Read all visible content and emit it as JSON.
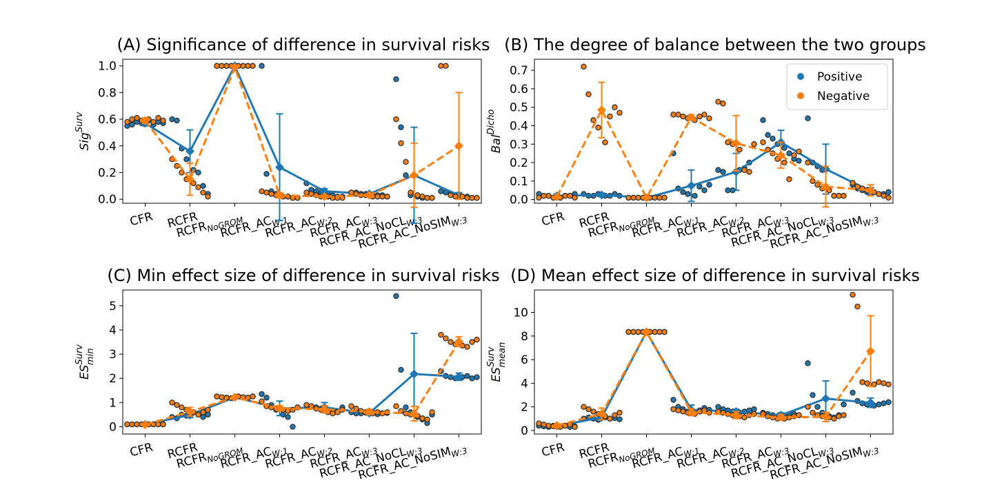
{
  "series_colors": {
    "Positive": "#1f77b4",
    "Negative": "#ff7f0e"
  },
  "legend": {
    "items": [
      "Positive",
      "Negative"
    ],
    "position": "top-right",
    "panel": 1
  },
  "chart_data": [
    {
      "type": "line",
      "title": "(A) Significance of difference in survival risks",
      "ylabel": {
        "main": "Sig",
        "sup": "Surv"
      },
      "categories": [
        {
          "main": "CFR",
          "sub": ""
        },
        {
          "main": "RCFR",
          "sub": ""
        },
        {
          "main": "RCFR",
          "sub": "NoGROM"
        },
        {
          "main": "RCFR_AC",
          "sub": "W:1"
        },
        {
          "main": "RCFR_AC",
          "sub": "W:2"
        },
        {
          "main": "RCFR_AC",
          "sub": "W:3"
        },
        {
          "main": "RCFR_AC_NoCL",
          "sub": "W:3"
        },
        {
          "main": "RCFR_AC_NoSIM",
          "sub": "W:3"
        }
      ],
      "ylim": [
        -0.03,
        1.05
      ],
      "yticks": [
        0,
        0.2,
        0.4,
        0.6,
        0.8,
        1.0
      ],
      "ytick_labels": [
        "0.0",
        "0.2",
        "0.4",
        "0.6",
        "0.8",
        "1.0"
      ],
      "grid": false,
      "series": [
        {
          "name": "Positive",
          "values": [
            0.57,
            0.36,
            1.0,
            0.24,
            0.06,
            0.04,
            0.18,
            0.03
          ],
          "err": [
            0.02,
            0.16,
            0.0,
            0.4,
            0.02,
            0.01,
            0.36,
            0.02
          ],
          "points": [
            [
              0.55,
              0.56,
              0.58,
              0.57,
              0.59,
              0.56,
              0.58,
              0.57
            ],
            [
              0.6,
              0.59,
              0.38,
              0.3,
              0.22,
              0.2,
              0.1,
              0.04
            ],
            [
              1,
              1,
              1,
              1,
              1,
              1,
              1,
              1
            ],
            [
              1.0,
              0.19,
              0.06,
              0.04,
              0.02,
              0.02,
              0.01,
              0.01
            ],
            [
              0.12,
              0.07,
              0.06,
              0.05,
              0.04,
              0.03,
              0.02,
              0.02
            ],
            [
              0.05,
              0.05,
              0.04,
              0.04,
              0.03,
              0.03,
              0.03,
              0.02
            ],
            [
              0.9,
              0.54,
              0.18,
              0.03,
              0.02,
              0.01,
              0.01,
              0.01
            ],
            [
              0.06,
              0.05,
              0.04,
              0.03,
              0.02,
              0.02,
              0.01,
              0.01
            ]
          ]
        },
        {
          "name": "Negative",
          "values": [
            0.59,
            0.15,
            0.99,
            0.03,
            0.02,
            0.03,
            0.18,
            0.4
          ],
          "err": [
            0.02,
            0.12,
            0.0,
            0.02,
            0.01,
            0.01,
            0.24,
            0.4
          ],
          "points": [
            [
              0.58,
              0.6,
              0.61,
              0.59,
              0.6,
              0.58,
              0.61,
              0.59
            ],
            [
              0.3,
              0.25,
              0.2,
              0.15,
              0.12,
              0.09,
              0.05,
              0.02
            ],
            [
              1,
              1,
              1,
              1,
              1,
              1,
              1,
              1
            ],
            [
              0.06,
              0.05,
              0.04,
              0.03,
              0.02,
              0.02,
              0.01,
              0.01
            ],
            [
              0.05,
              0.04,
              0.03,
              0.02,
              0.02,
              0.01,
              0.01,
              0.01
            ],
            [
              0.05,
              0.04,
              0.03,
              0.03,
              0.02,
              0.02,
              0.02,
              0.02
            ],
            [
              0.6,
              0.42,
              0.28,
              0.05,
              0.03,
              0.02,
              0.01,
              0.01
            ],
            [
              1.0,
              1.0,
              0.03,
              0.02,
              0.02,
              0.01,
              0.01,
              0.01
            ]
          ]
        }
      ]
    },
    {
      "type": "line",
      "title": "(B) The degree of balance between the two groups",
      "ylabel": {
        "main": "Bal",
        "sup": "Dicho"
      },
      "categories": [
        {
          "main": "CFR",
          "sub": ""
        },
        {
          "main": "RCFR",
          "sub": ""
        },
        {
          "main": "RCFR",
          "sub": "NoGROM"
        },
        {
          "main": "RCFR_AC",
          "sub": "W:1"
        },
        {
          "main": "RCFR_AC",
          "sub": "W:2"
        },
        {
          "main": "RCFR_AC",
          "sub": "W:3"
        },
        {
          "main": "RCFR_AC_NoCL",
          "sub": "W:3"
        },
        {
          "main": "RCFR_AC_NoSIM",
          "sub": "W:3"
        }
      ],
      "ylim": [
        -0.02,
        0.76
      ],
      "yticks": [
        0,
        0.1,
        0.2,
        0.3,
        0.4,
        0.5,
        0.6,
        0.7
      ],
      "ytick_labels": [
        "0.0",
        "0.1",
        "0.2",
        "0.3",
        "0.4",
        "0.5",
        "0.6",
        "0.7"
      ],
      "grid": false,
      "series": [
        {
          "name": "Positive",
          "values": [
            0.02,
            0.025,
            0.01,
            0.075,
            0.15,
            0.31,
            0.165,
            0.045
          ],
          "err": [
            0.01,
            0.01,
            0.0,
            0.085,
            0.1,
            0.065,
            0.135,
            0.02
          ],
          "points": [
            [
              0.03,
              0.02,
              0.02,
              0.01,
              0.01,
              0.02,
              0.02,
              0.03
            ],
            [
              0.03,
              0.02,
              0.02,
              0.03,
              0.02,
              0.02,
              0.03,
              0.02
            ],
            [
              0.01,
              0.01,
              0.01,
              0.01,
              0.01,
              0.01,
              0.01,
              0.01
            ],
            [
              0.25,
              0.06,
              0.04,
              0.03,
              0.02,
              0.07,
              0.05,
              0.08
            ],
            [
              0.16,
              0.15,
              0.05,
              0.05,
              0.16,
              0.17,
              0.2,
              0.3
            ],
            [
              0.43,
              0.35,
              0.33,
              0.3,
              0.28,
              0.25,
              0.22,
              0.21
            ],
            [
              0.44,
              0.2,
              0.18,
              0.16,
              0.05,
              0.02,
              0.02,
              0.02
            ],
            [
              0.08,
              0.06,
              0.05,
              0.04,
              0.04,
              0.03,
              0.03,
              0.04
            ]
          ]
        },
        {
          "name": "Negative",
          "values": [
            0.015,
            0.485,
            0.01,
            0.445,
            0.305,
            0.24,
            0.07,
            0.05
          ],
          "err": [
            0.005,
            0.15,
            0.0,
            0.015,
            0.15,
            0.07,
            0.11,
            0.03
          ],
          "points": [
            [
              0.01,
              0.02,
              0.02,
              0.01,
              0.01,
              0.02,
              0.02,
              0.01
            ],
            [
              0.72,
              0.57,
              0.43,
              0.39,
              0.31,
              0.45,
              0.5,
              0.47
            ],
            [
              0.01,
              0.01,
              0.01,
              0.01,
              0.01,
              0.01,
              0.01,
              0.01
            ],
            [
              0.46,
              0.46,
              0.45,
              0.44,
              0.43,
              0.45,
              0.46,
              0.44
            ],
            [
              0.53,
              0.52,
              0.31,
              0.3,
              0.27,
              0.16,
              0.15,
              0.3
            ],
            [
              0.31,
              0.27,
              0.25,
              0.22,
              0.2,
              0.11,
              0.24,
              0.26
            ],
            [
              0.2,
              0.1,
              0.08,
              0.06,
              0.05,
              0.02,
              0.02,
              0.02
            ],
            [
              0.09,
              0.07,
              0.06,
              0.05,
              0.04,
              0.03,
              0.02,
              0.01
            ]
          ]
        }
      ]
    },
    {
      "type": "line",
      "title": "(C) Min effect size of difference in survival risks",
      "ylabel": {
        "main": "ES",
        "sup": "Surv",
        "sub": "min"
      },
      "categories": [
        {
          "main": "CFR",
          "sub": ""
        },
        {
          "main": "RCFR",
          "sub": ""
        },
        {
          "main": "RCFR",
          "sub": "NoGROM"
        },
        {
          "main": "RCFR_AC",
          "sub": "W:1"
        },
        {
          "main": "RCFR_AC",
          "sub": "W:2"
        },
        {
          "main": "RCFR_AC",
          "sub": "W:3"
        },
        {
          "main": "RCFR_AC_NoCL",
          "sub": "W:3"
        },
        {
          "main": "RCFR_AC_NoSIM",
          "sub": "W:3"
        }
      ],
      "ylim": [
        -0.3,
        5.65
      ],
      "yticks": [
        0,
        1,
        2,
        3,
        4,
        5
      ],
      "ytick_labels": [
        "0",
        "1",
        "2",
        "3",
        "4",
        "5"
      ],
      "grid": false,
      "series": [
        {
          "name": "Positive",
          "values": [
            0.1,
            0.48,
            1.22,
            0.76,
            0.8,
            0.56,
            2.18,
            2.07
          ],
          "err": [
            0.01,
            0.1,
            0.0,
            0.3,
            0.2,
            0.05,
            1.68,
            0.15
          ],
          "points": [
            [
              0.1,
              0.1,
              0.1,
              0.1,
              0.1,
              0.1,
              0.1,
              0.1
            ],
            [
              0.4,
              0.35,
              0.5,
              0.45,
              0.6,
              0.55,
              0.4,
              0.5
            ],
            [
              1.25,
              1.22,
              1.2,
              1.18,
              1.25,
              1.22,
              1.2,
              1.25
            ],
            [
              1.35,
              1.2,
              0.9,
              0.7,
              0.5,
              0.4,
              0.0,
              0.8
            ],
            [
              0.9,
              0.85,
              0.8,
              0.75,
              0.7,
              0.65,
              0.6,
              0.8
            ],
            [
              0.6,
              0.55,
              0.55,
              0.58,
              0.6,
              0.52,
              0.56,
              0.57
            ],
            [
              5.4,
              2.35,
              0.8,
              0.6,
              0.4,
              0.3,
              0.15,
              0.5
            ],
            [
              2.3,
              2.1,
              2.05,
              2.0,
              2.05,
              2.1,
              2.0,
              2.05
            ]
          ]
        },
        {
          "name": "Negative",
          "values": [
            0.08,
            0.62,
            1.22,
            0.77,
            0.72,
            0.62,
            0.54,
            3.52
          ],
          "err": [
            0.01,
            0.18,
            0.0,
            0.1,
            0.15,
            0.1,
            0.3,
            0.2
          ],
          "points": [
            [
              0.1,
              0.1,
              0.1,
              0.1,
              0.1,
              0.1,
              0.1,
              0.1
            ],
            [
              1.0,
              0.9,
              0.8,
              0.7,
              0.6,
              0.5,
              0.6,
              0.7
            ],
            [
              1.25,
              1.22,
              1.2,
              1.18,
              1.25,
              1.22,
              1.2,
              1.25
            ],
            [
              1.05,
              0.85,
              0.8,
              0.75,
              0.7,
              0.65,
              0.7,
              0.8
            ],
            [
              0.9,
              0.85,
              0.75,
              0.7,
              0.6,
              0.55,
              0.6,
              0.7
            ],
            [
              0.85,
              0.75,
              0.65,
              0.6,
              0.55,
              0.6,
              0.55,
              0.6
            ],
            [
              0.85,
              0.65,
              0.55,
              0.5,
              0.45,
              0.35,
              0.3,
              0.6
            ],
            [
              3.8,
              3.65,
              3.5,
              3.4,
              3.35,
              3.3,
              3.5,
              3.6
            ]
          ]
        }
      ]
    },
    {
      "type": "line",
      "title": "(D) Mean effect size of difference in survival risks",
      "ylabel": {
        "main": "ES",
        "sup": "Surv",
        "sub": "mean"
      },
      "categories": [
        {
          "main": "CFR",
          "sub": ""
        },
        {
          "main": "RCFR",
          "sub": ""
        },
        {
          "main": "RCFR",
          "sub": "NoGROM"
        },
        {
          "main": "RCFR_AC",
          "sub": "W:1"
        },
        {
          "main": "RCFR_AC",
          "sub": "W:2"
        },
        {
          "main": "RCFR_AC",
          "sub": "W:3"
        },
        {
          "main": "RCFR_AC_NoCL",
          "sub": "W:3"
        },
        {
          "main": "RCFR_AC_NoSIM",
          "sub": "W:3"
        }
      ],
      "ylim": [
        -0.3,
        11.9
      ],
      "yticks": [
        0,
        2,
        4,
        6,
        8,
        10
      ],
      "ytick_labels": [
        "0",
        "2",
        "4",
        "6",
        "8",
        "10"
      ],
      "grid": false,
      "series": [
        {
          "name": "Positive",
          "values": [
            0.38,
            1.1,
            8.35,
            1.75,
            1.6,
            1.3,
            2.7,
            2.35
          ],
          "err": [
            0.02,
            0.1,
            0.0,
            0.4,
            0.2,
            0.2,
            1.5,
            0.4
          ],
          "points": [
            [
              0.4,
              0.35,
              0.3,
              0.4,
              0.35,
              0.4,
              0.3,
              0.35
            ],
            [
              1.0,
              1.1,
              1.0,
              0.9,
              1.1,
              1.0,
              1.05,
              0.95
            ],
            [
              8.35,
              8.35,
              8.35,
              8.35,
              8.35,
              8.35,
              8.35,
              8.35
            ],
            [
              2.6,
              2.0,
              1.8,
              1.6,
              1.5,
              1.7,
              1.9,
              1.75
            ],
            [
              2.0,
              1.8,
              1.7,
              1.6,
              1.5,
              1.6,
              1.7,
              1.8
            ],
            [
              1.5,
              1.4,
              1.3,
              1.2,
              1.25,
              1.35,
              1.4,
              1.3
            ],
            [
              5.7,
              3.0,
              2.0,
              1.5,
              1.2,
              1.1,
              1.3,
              2.2
            ],
            [
              3.2,
              2.5,
              2.3,
              2.2,
              2.1,
              2.2,
              2.3,
              2.4
            ]
          ]
        },
        {
          "name": "Negative",
          "values": [
            0.42,
            1.4,
            8.35,
            1.55,
            1.3,
            1.12,
            1.15,
            6.72
          ],
          "err": [
            0.05,
            0.5,
            0.0,
            0.3,
            0.3,
            0.2,
            0.4,
            3.0
          ],
          "points": [
            [
              0.6,
              0.5,
              0.4,
              0.35,
              0.3,
              0.4,
              0.5,
              0.3
            ],
            [
              2.0,
              1.8,
              1.6,
              1.4,
              1.2,
              1.0,
              1.3,
              1.5
            ],
            [
              8.35,
              8.35,
              8.35,
              8.35,
              8.35,
              8.35,
              8.35,
              8.35
            ],
            [
              1.8,
              1.7,
              1.6,
              1.5,
              1.4,
              1.6,
              1.7,
              1.5
            ],
            [
              1.6,
              1.5,
              1.4,
              1.3,
              1.2,
              1.1,
              1.3,
              1.4
            ],
            [
              1.4,
              1.2,
              1.1,
              1.0,
              1.0,
              1.1,
              1.2,
              1.3
            ],
            [
              2.0,
              1.5,
              1.3,
              1.2,
              1.1,
              1.0,
              1.2,
              1.3
            ],
            [
              11.5,
              10.5,
              4.1,
              4.0,
              3.9,
              4.1,
              4.0,
              3.9
            ]
          ]
        }
      ]
    }
  ]
}
